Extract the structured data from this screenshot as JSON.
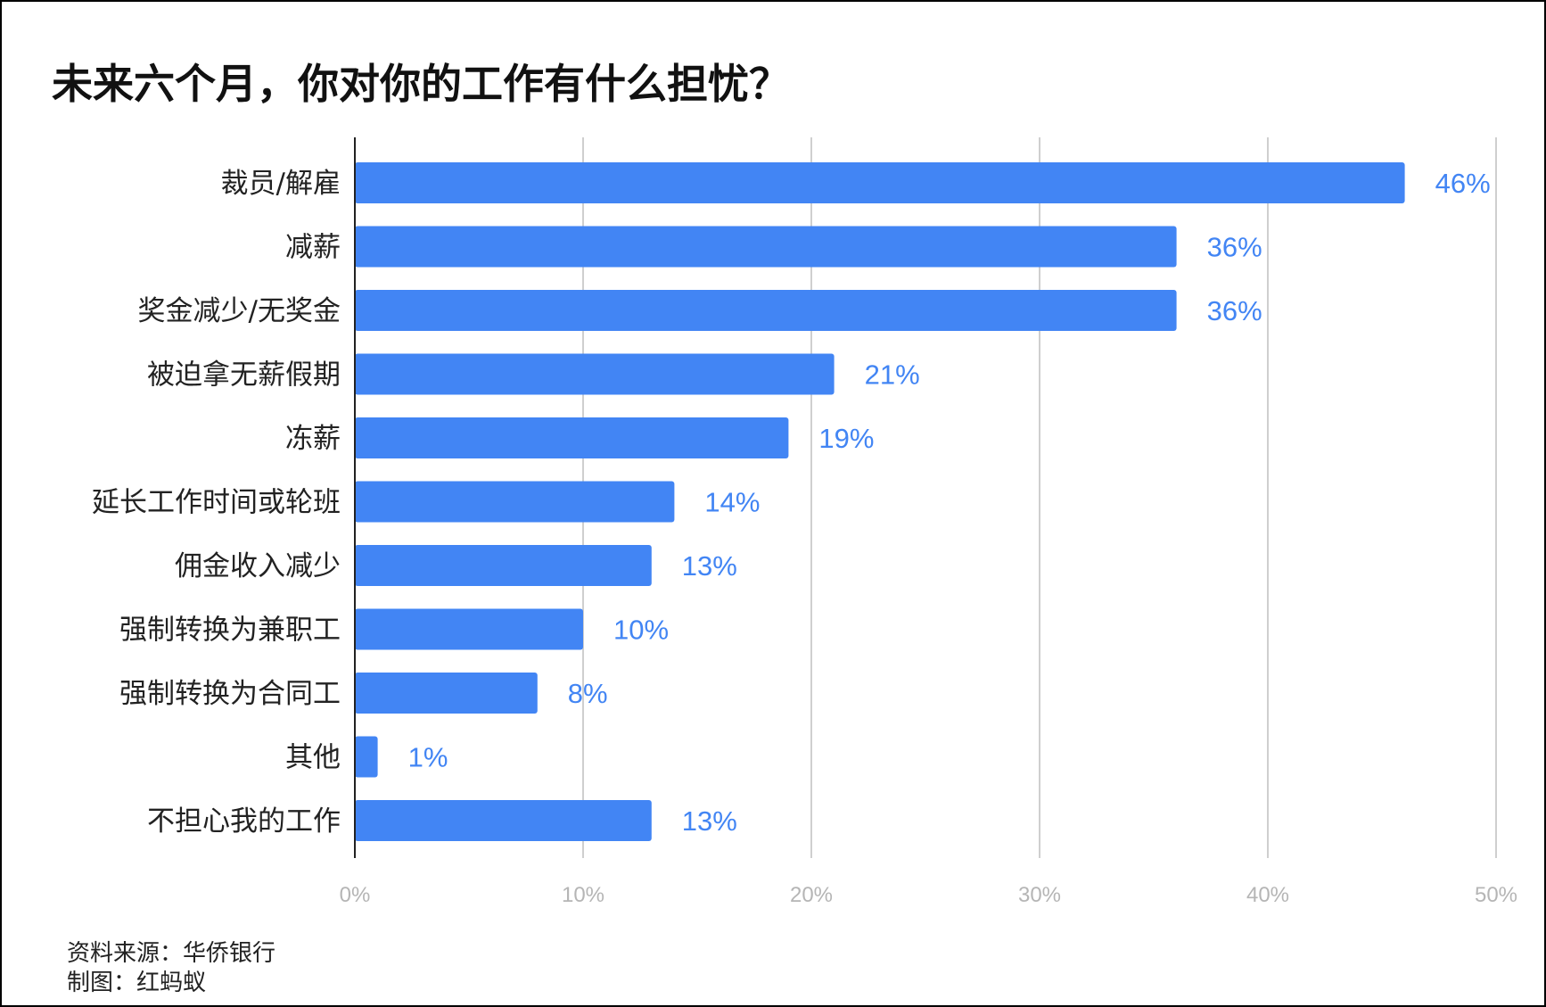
{
  "chart_data": {
    "type": "bar",
    "orientation": "horizontal",
    "title": "未来六个月，你对你的工作有什么担忧？",
    "categories": [
      "裁员/解雇",
      "减薪",
      "奖金减少/无奖金",
      "被迫拿无薪假期",
      "冻薪",
      "延长工作时间或轮班",
      "佣金收入减少",
      "强制转换为兼职工",
      "强制转换为合同工",
      "其他",
      "不担心我的工作"
    ],
    "values": [
      46,
      36,
      36,
      21,
      19,
      14,
      13,
      10,
      8,
      1,
      13
    ],
    "value_labels": [
      "46%",
      "36%",
      "36%",
      "21%",
      "19%",
      "14%",
      "13%",
      "10%",
      "8%",
      "1%",
      "13%"
    ],
    "xlim": [
      0,
      50
    ],
    "x_ticks": [
      "0%",
      "10%",
      "20%",
      "30%",
      "40%",
      "50%"
    ],
    "grid": "vertical",
    "bar_color": "#4285f4",
    "label_color": "#4285f4"
  },
  "footer": {
    "source": "资料来源：华侨银行",
    "credit": "制图：红蚂蚁"
  }
}
